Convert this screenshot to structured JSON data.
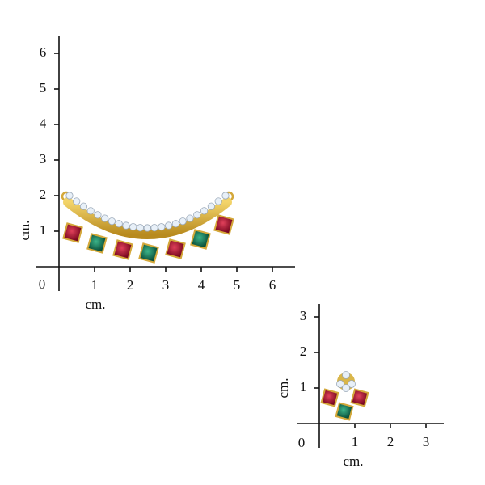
{
  "rulers": [
    {
      "origin": "0",
      "x_ticks": [
        "1",
        "2",
        "3",
        "4",
        "5",
        "6"
      ],
      "y_ticks": [
        "1",
        "2",
        "3",
        "4",
        "5",
        "6"
      ],
      "x_label": "cm.",
      "y_label": "cm."
    },
    {
      "origin": "0",
      "x_ticks": [
        "1",
        "2",
        "3"
      ],
      "y_ticks": [
        "1",
        "2",
        "3"
      ],
      "x_label": "cm.",
      "y_label": "cm."
    }
  ]
}
